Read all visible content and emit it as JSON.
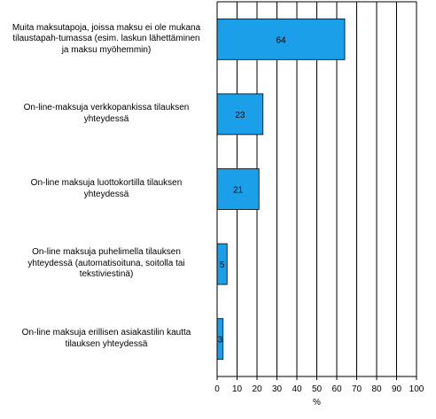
{
  "chart_data": {
    "type": "bar",
    "orientation": "horizontal",
    "categories": [
      "Muita maksutapoja, joissa maksu ei ole mukana tilaustapah-tumassa (esim. laskun lähettäminen ja maksu myöhemmin)",
      "On-line-maksuja verkkopankissa tilauksen yhteydessä",
      "On-line maksuja luottokortilla tilauksen yhteydessä",
      "On-line maksuja puhelimella tilauksen yhteydessä (automatisoituna, soitolla tai tekstiviestinä)",
      "On-line maksuja erillisen asiakastilin kautta tilauksen yhteydessä"
    ],
    "category_lines": [
      [
        "Muita maksutapoja, joissa maksu ei ole mukana",
        "tilaustapah-tumassa (esim. laskun lähettäminen",
        "ja maksu myöhemmin)"
      ],
      [
        "On-line-maksuja verkkopankissa tilauksen",
        "yhteydessä"
      ],
      [
        "On-line maksuja luottokortilla tilauksen",
        "yhteydessä"
      ],
      [
        "On-line maksuja puhelimella tilauksen",
        "yhteydessä (automatisoituna, soitolla tai",
        "tekstiviestinä)"
      ],
      [
        "On-line maksuja erillisen asiakastilin kautta",
        "tilauksen yhteydessä"
      ]
    ],
    "values": [
      64,
      23,
      21,
      5,
      3
    ],
    "data_labels": [
      "64",
      "23",
      "21",
      "5",
      "3"
    ],
    "xlabel": "%",
    "xlim": [
      0,
      100
    ],
    "xticks": [
      0,
      10,
      20,
      30,
      40,
      50,
      60,
      70,
      80,
      90,
      100
    ],
    "grid": "vertical",
    "colors": {
      "bar": "#1a9fe8",
      "bar_stroke": "#000000",
      "grid": "#000000",
      "axis": "#000000"
    }
  }
}
